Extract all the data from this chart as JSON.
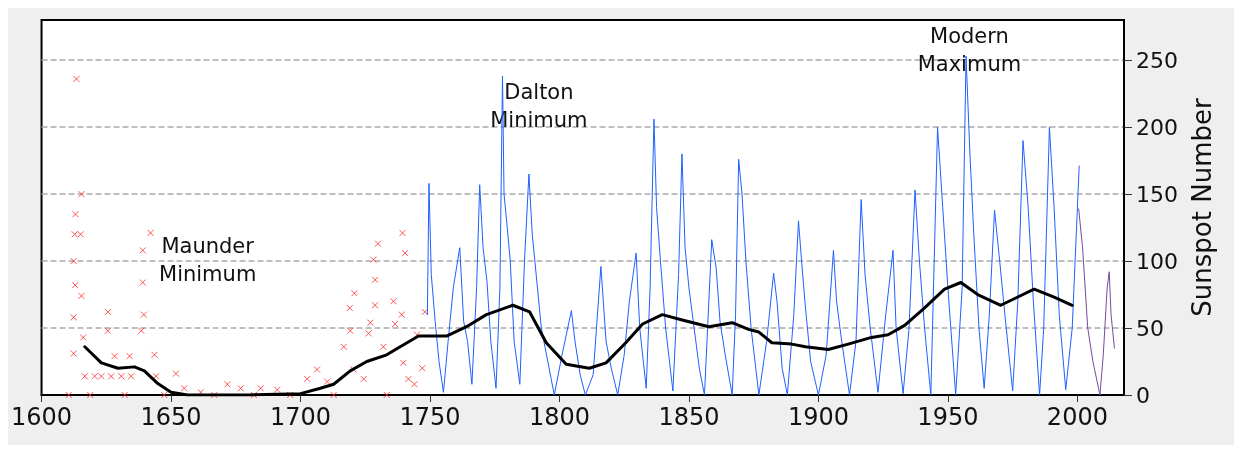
{
  "chart_data": {
    "type": "line",
    "ylabel": "Sunspot Number",
    "xlim": [
      1600,
      2018
    ],
    "xticks": [
      1600,
      1650,
      1700,
      1750,
      1800,
      1850,
      1900,
      1950,
      2000
    ],
    "ylim": [
      0,
      280
    ],
    "yticks": [
      0,
      50,
      100,
      150,
      200,
      250
    ],
    "grid": "y",
    "annotations": [
      "Maunder Minimum",
      "Dalton Minimum",
      "Modern Maximum"
    ],
    "series": [
      {
        "type": "scatter",
        "marker": "cross",
        "color": "#ff2a2a",
        "x": [
          1613.5,
          1615.4,
          1613.1,
          1612.8,
          1612.4,
          1613,
          1612.4,
          1615.1,
          1615.4,
          1612.4,
          1616.1,
          1616.7,
          1610.5,
          1618.8,
          1620.5,
          1623.1,
          1626.9,
          1630.8,
          1634.6,
          1625.6,
          1625.6,
          1628.2,
          1634,
          1632.1,
          1639.1,
          1639.1,
          1639.5,
          1638.5,
          1642.1,
          1643.6,
          1644.2,
          1647.4,
          1651.9,
          1655.1,
          1661.5,
          1671.8,
          1666.7,
          1676.9,
          1684.6,
          1682,
          1691,
          1696,
          1702.6,
          1706.4,
          1710.3,
          1712.8,
          1716.7,
          1719.2,
          1719,
          1720.8,
          1720.5,
          1724.4,
          1726.3,
          1727,
          1728.2,
          1728.8,
          1729.9,
          1728.8,
          1732,
          1733.3,
          1735.9,
          1736.5,
          1739.4,
          1740.4,
          1739.1,
          1739.7,
          1741.7,
          1744,
          1745,
          1747,
          1748
        ],
        "values": [
          236,
          150,
          135,
          120,
          100,
          82,
          58,
          120,
          74,
          31,
          43,
          14,
          0,
          0,
          14,
          14,
          14,
          14,
          14,
          62,
          48,
          29,
          29,
          0,
          108,
          84,
          60,
          48,
          121,
          30,
          14,
          0,
          16,
          5,
          2,
          8,
          0,
          5,
          5,
          0,
          4,
          0,
          12,
          19,
          10,
          0,
          36,
          48,
          65,
          76,
          19,
          12,
          46,
          54,
          101,
          86,
          113,
          67,
          36,
          0,
          70,
          53,
          121,
          106,
          60,
          24,
          12,
          8,
          45,
          20,
          62
        ]
      },
      {
        "marker": "none",
        "color": "#2060ff",
        "x": [
          1749,
          1749.6,
          1750.5,
          1752,
          1753.5,
          1755.2,
          1757,
          1759,
          1761.5,
          1763,
          1764.5,
          1766.2,
          1768,
          1769.2,
          1770.5,
          1772,
          1773.5,
          1775.5,
          1777,
          1778,
          1778.6,
          1779.6,
          1781,
          1782.5,
          1784.7,
          1786.5,
          1788.2,
          1789.5,
          1791,
          1793,
          1795.5,
          1798,
          1801,
          1804.6,
          1806,
          1808,
          1810,
          1813,
          1816,
          1818,
          1820,
          1822.5,
          1825,
          1827,
          1829.6,
          1831,
          1833.5,
          1835,
          1836.5,
          1837.5,
          1839,
          1841,
          1843.8,
          1846,
          1847.3,
          1848.5,
          1850,
          1852,
          1854,
          1856,
          1858.8,
          1860.5,
          1862,
          1864,
          1866.7,
          1868,
          1869.2,
          1870.5,
          1872,
          1874,
          1877,
          1880,
          1882.7,
          1884,
          1886,
          1888,
          1890.5,
          1892.3,
          1893.5,
          1895,
          1897,
          1900,
          1903,
          1905.8,
          1907,
          1909,
          1912,
          1914.5,
          1916.5,
          1918,
          1920,
          1923,
          1926,
          1928.8,
          1930,
          1932.7,
          1935,
          1937.3,
          1939,
          1941,
          1943.4,
          1946,
          1948,
          1950,
          1953,
          1955.5,
          1957,
          1958.5,
          1960,
          1962,
          1964,
          1966,
          1968,
          1970,
          1972,
          1975,
          1977,
          1979,
          1981,
          1983,
          1985.4,
          1987,
          1989.2,
          1991,
          1993,
          1995.5,
          1998,
          2000.7
        ],
        "values": [
          60,
          158,
          90,
          55,
          25,
          2,
          40,
          80,
          110,
          55,
          40,
          8,
          80,
          157,
          110,
          85,
          40,
          5,
          80,
          238,
          150,
          130,
          100,
          40,
          8,
          100,
          165,
          120,
          90,
          50,
          25,
          0,
          30,
          63,
          40,
          15,
          0,
          15,
          96,
          40,
          20,
          0,
          30,
          70,
          106,
          50,
          5,
          80,
          206,
          140,
          100,
          50,
          3,
          90,
          180,
          110,
          80,
          50,
          20,
          0,
          116,
          95,
          55,
          30,
          0,
          60,
          176,
          150,
          100,
          50,
          0,
          40,
          91,
          70,
          20,
          0,
          60,
          130,
          100,
          65,
          25,
          0,
          30,
          108,
          70,
          40,
          0,
          40,
          146,
          90,
          50,
          2,
          60,
          108,
          50,
          1,
          50,
          153,
          100,
          50,
          0,
          200,
          140,
          80,
          0,
          80,
          253,
          180,
          120,
          50,
          5,
          60,
          138,
          100,
          60,
          3,
          70,
          190,
          140,
          70,
          0,
          50,
          200,
          140,
          60,
          4,
          50,
          171
        ]
      },
      {
        "marker": "none",
        "color": "#7a4a9e",
        "x": [
          2000.5,
          2002,
          2004,
          2006,
          2008.7,
          2010,
          2011.5,
          2012.3,
          2013,
          2014.3
        ],
        "values": [
          139,
          110,
          50,
          25,
          0,
          30,
          80,
          92,
          60,
          35
        ]
      },
      {
        "marker": "none",
        "color": "#000000",
        "x": [
          1616.7,
          1623.1,
          1629.5,
          1635.9,
          1639.7,
          1644.9,
          1650,
          1656.4,
          1680,
          1700,
          1707.7,
          1712.8,
          1719.2,
          1725.6,
          1733.3,
          1738.5,
          1745.6,
          1748.7,
          1756.4,
          1764.1,
          1771.8,
          1782,
          1788.5,
          1794.9,
          1802.6,
          1811.5,
          1818,
          1825.6,
          1832.1,
          1839.7,
          1847.4,
          1857.7,
          1866.7,
          1873,
          1877,
          1882,
          1889.7,
          1895,
          1903.8,
          1911.5,
          1920.5,
          1926.9,
          1933.3,
          1941,
          1948.7,
          1955,
          1961.5,
          1970.4,
          1976.8,
          1983.3,
          1991,
          1998
        ],
        "values": [
          36,
          24,
          20,
          21,
          18,
          8.5,
          2,
          0,
          0,
          1,
          5,
          8,
          18,
          25,
          30,
          36,
          44,
          44,
          44,
          51,
          60,
          67,
          62,
          39,
          23,
          20,
          24,
          39,
          53,
          60,
          56,
          51,
          54,
          49,
          47,
          39,
          38,
          36,
          34,
          38,
          43,
          45,
          52,
          65,
          79,
          84,
          75,
          67,
          73,
          79,
          73,
          67
        ]
      }
    ]
  }
}
